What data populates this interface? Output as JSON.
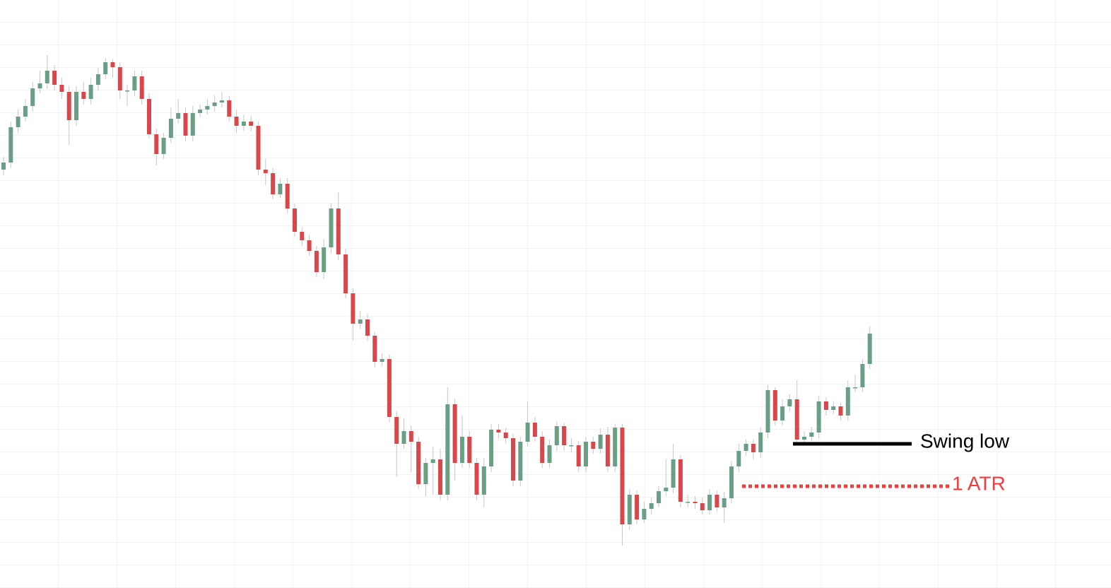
{
  "chart_data": {
    "type": "candlestick",
    "up_color": "#6a9e85",
    "down_color": "#d9474a",
    "open": [
      560,
      570,
      620,
      635,
      650,
      675,
      682,
      700,
      680,
      670,
      630,
      670,
      660,
      680,
      695,
      712,
      705,
      672,
      672,
      692,
      660,
      610,
      582,
      605,
      632,
      640,
      608,
      640,
      645,
      650,
      655,
      658,
      635,
      622,
      628,
      622,
      560,
      555,
      525,
      540,
      505,
      472,
      460,
      445,
      415,
      450,
      505,
      440,
      385,
      342,
      348,
      325,
      288,
      292,
      210,
      172,
      190,
      175,
      115,
      145,
      150,
      100,
      228,
      145,
      182,
      145,
      100,
      140,
      192,
      188,
      180,
      120,
      175,
      202,
      182,
      145,
      170,
      197,
      170,
      170,
      140,
      175,
      165,
      185,
      140,
      195,
      58,
      100,
      65,
      80,
      88,
      105,
      110,
      150,
      90,
      90,
      88,
      78,
      100,
      82,
      95,
      140,
      162,
      172,
      160,
      188,
      248,
      205,
      225,
      235,
      178,
      182,
      188,
      232,
      220,
      225,
      212,
      252,
      252,
      285
    ],
    "high": [
      578,
      628,
      645,
      660,
      684,
      700,
      722,
      708,
      690,
      678,
      678,
      684,
      690,
      704,
      718,
      716,
      712,
      680,
      700,
      700,
      668,
      618,
      612,
      648,
      660,
      648,
      650,
      652,
      660,
      665,
      670,
      664,
      645,
      638,
      636,
      628,
      575,
      562,
      548,
      548,
      512,
      478,
      468,
      452,
      462,
      512,
      528,
      448,
      392,
      360,
      356,
      330,
      300,
      298,
      218,
      208,
      198,
      182,
      152,
      168,
      165,
      252,
      236,
      212,
      190,
      152,
      152,
      200,
      200,
      195,
      186,
      182,
      232,
      210,
      190,
      178,
      204,
      202,
      180,
      176,
      182,
      182,
      194,
      196,
      200,
      200,
      108,
      106,
      90,
      96,
      112,
      150,
      172,
      156,
      100,
      98,
      96,
      108,
      106,
      104,
      148,
      172,
      178,
      178,
      196,
      255,
      252,
      235,
      242,
      262,
      190,
      196,
      240,
      238,
      232,
      230,
      262,
      270,
      292,
      338
    ],
    "low": [
      552,
      562,
      612,
      628,
      642,
      668,
      674,
      672,
      660,
      595,
      622,
      652,
      652,
      672,
      688,
      690,
      660,
      650,
      664,
      652,
      604,
      566,
      575,
      598,
      625,
      600,
      600,
      634,
      638,
      642,
      648,
      628,
      612,
      615,
      614,
      552,
      538,
      518,
      520,
      498,
      465,
      452,
      438,
      408,
      405,
      442,
      432,
      378,
      318,
      335,
      318,
      280,
      282,
      202,
      125,
      165,
      132,
      108,
      98,
      100,
      92,
      92,
      120,
      138,
      138,
      92,
      82,
      132,
      180,
      172,
      112,
      112,
      168,
      175,
      138,
      138,
      162,
      162,
      160,
      132,
      132,
      158,
      158,
      132,
      132,
      28,
      50,
      58,
      60,
      72,
      82,
      98,
      102,
      82,
      82,
      80,
      72,
      72,
      76,
      60,
      88,
      132,
      155,
      150,
      152,
      180,
      198,
      198,
      218,
      170,
      172,
      176,
      180,
      212,
      214,
      205,
      205,
      245,
      245,
      278
    ],
    "close": [
      570,
      620,
      635,
      650,
      675,
      682,
      700,
      680,
      670,
      630,
      670,
      660,
      680,
      695,
      712,
      705,
      672,
      672,
      692,
      660,
      610,
      582,
      605,
      632,
      640,
      608,
      640,
      645,
      650,
      655,
      658,
      635,
      622,
      628,
      622,
      560,
      555,
      525,
      540,
      505,
      472,
      460,
      445,
      415,
      450,
      505,
      440,
      385,
      342,
      348,
      325,
      288,
      292,
      210,
      172,
      190,
      175,
      115,
      145,
      150,
      100,
      228,
      145,
      182,
      145,
      100,
      140,
      192,
      188,
      180,
      120,
      175,
      202,
      182,
      145,
      170,
      197,
      170,
      170,
      140,
      175,
      165,
      185,
      140,
      195,
      58,
      100,
      65,
      80,
      88,
      105,
      110,
      150,
      90,
      90,
      88,
      78,
      100,
      82,
      95,
      140,
      162,
      172,
      160,
      188,
      248,
      205,
      225,
      235,
      178,
      182,
      188,
      232,
      220,
      225,
      212,
      252,
      252,
      285,
      328
    ],
    "annotations": [
      {
        "text": "Swing low",
        "value": 172,
        "color": "#000000",
        "style": "solid"
      },
      {
        "text": "1 ATR",
        "value": 112,
        "color": "#f23b3b",
        "style": "dotted"
      }
    ]
  }
}
